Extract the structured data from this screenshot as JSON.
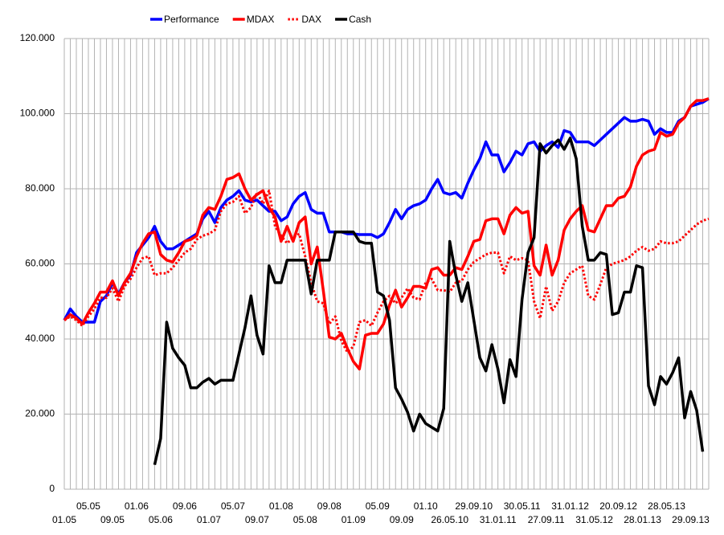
{
  "chart_data": {
    "type": "line",
    "categories": [
      "01.05",
      null,
      null,
      null,
      "05.05",
      null,
      null,
      null,
      "09.05",
      null,
      null,
      null,
      "01.06",
      null,
      null,
      null,
      "05.06",
      null,
      null,
      null,
      "09.06",
      null,
      null,
      null,
      "01.07",
      null,
      null,
      null,
      "05.07",
      null,
      null,
      null,
      "09.07",
      null,
      null,
      null,
      "01.08",
      null,
      null,
      null,
      "05.08",
      null,
      null,
      null,
      "09.08",
      null,
      null,
      null,
      "01.09",
      null,
      null,
      null,
      "05.09",
      null,
      null,
      null,
      "09.09",
      null,
      null,
      null,
      "01.10",
      null,
      null,
      null,
      "26.05.10",
      null,
      null,
      null,
      "29.09.10",
      null,
      null,
      null,
      "31.01.11",
      null,
      null,
      null,
      "30.05.11",
      null,
      null,
      null,
      "27.09.11",
      null,
      null,
      null,
      "31.01.12",
      null,
      null,
      null,
      "31.05.12",
      null,
      null,
      null,
      "20.09.12",
      null,
      null,
      null,
      "28.01.13",
      null,
      null,
      null,
      "28.05.13",
      null,
      null,
      null,
      "29.09.13",
      null,
      null,
      null
    ],
    "series": [
      {
        "name": "Performance",
        "color": "#0000ff",
        "dash": false,
        "values": [
          45000,
          48000,
          46000,
          44500,
          44500,
          44500,
          50000,
          51500,
          55000,
          52000,
          55000,
          57000,
          63000,
          65000,
          67000,
          70000,
          66000,
          64000,
          64000,
          65000,
          66000,
          67000,
          68000,
          72000,
          74000,
          71000,
          75000,
          77000,
          78000,
          79500,
          77000,
          76500,
          77000,
          75500,
          74000,
          74000,
          71500,
          72500,
          76000,
          78000,
          79000,
          74500,
          73500,
          73500,
          68500,
          68500,
          68500,
          68000,
          68000,
          67800,
          67800,
          67800,
          67000,
          68000,
          71000,
          74500,
          72000,
          74500,
          75500,
          76000,
          77000,
          80000,
          82500,
          79000,
          78500,
          79000,
          77500,
          81500,
          85000,
          88000,
          92500,
          89000,
          89000,
          84500,
          87000,
          90000,
          89000,
          92000,
          92500,
          90000,
          91500,
          92500,
          91000,
          95500,
          95000,
          92500,
          92500,
          92500,
          91500,
          93000,
          94500,
          96000,
          97500,
          99000,
          98000,
          98000,
          98500,
          98000,
          94500,
          96000,
          95000,
          95000,
          98000,
          99000,
          102000,
          102500,
          103000,
          104000
        ]
      },
      {
        "name": "MDAX",
        "color": "#ff0000",
        "dash": false,
        "values": [
          45000,
          46500,
          45500,
          44000,
          47000,
          49500,
          52500,
          52500,
          55500,
          51500,
          55000,
          57500,
          62000,
          65500,
          68000,
          68500,
          62500,
          61000,
          60500,
          63000,
          66000,
          66500,
          67500,
          73000,
          75000,
          74500,
          78000,
          82500,
          83000,
          84000,
          80000,
          77000,
          78500,
          79500,
          75000,
          72500,
          66000,
          70000,
          66000,
          71000,
          72500,
          60000,
          64500,
          53000,
          40500,
          40000,
          41500,
          37500,
          34000,
          32000,
          41000,
          41500,
          41500,
          44000,
          49000,
          53000,
          48500,
          51000,
          54000,
          54000,
          53500,
          58500,
          59000,
          57000,
          57000,
          59000,
          58500,
          62000,
          66000,
          66500,
          71500,
          72000,
          72000,
          68000,
          73000,
          75000,
          73500,
          74000,
          59500,
          57000,
          65000,
          57000,
          61000,
          69000,
          72000,
          74000,
          75500,
          69000,
          68500,
          72000,
          75500,
          75500,
          77500,
          78000,
          80500,
          86000,
          89000,
          90000,
          90500,
          95000,
          94000,
          94500,
          97500,
          99000,
          102000,
          103500,
          103500,
          104000
        ]
      },
      {
        "name": "DAX",
        "color": "#ff0000",
        "dash": true,
        "values": [
          45000,
          46000,
          45000,
          43500,
          46000,
          48000,
          51000,
          51000,
          53500,
          50000,
          54000,
          56000,
          59000,
          61500,
          62000,
          57000,
          57500,
          57500,
          59000,
          61000,
          63000,
          64000,
          66500,
          67500,
          68000,
          69000,
          74000,
          76000,
          76500,
          78000,
          73500,
          75000,
          79000,
          76000,
          79500,
          70000,
          67500,
          65500,
          67000,
          68000,
          62000,
          55000,
          50000,
          49500,
          44000,
          46000,
          39500,
          36500,
          38000,
          44500,
          45000,
          43500,
          47000,
          50000,
          51500,
          49500,
          51000,
          53500,
          51000,
          50500,
          55000,
          56000,
          53000,
          53000,
          52500,
          55000,
          55500,
          58500,
          60500,
          61500,
          62500,
          63000,
          63000,
          57500,
          62000,
          61000,
          61500,
          61000,
          50000,
          45500,
          54000,
          47500,
          50000,
          55000,
          57500,
          58500,
          59500,
          51500,
          50500,
          54500,
          59000,
          60000,
          60500,
          61000,
          62000,
          63500,
          64500,
          63500,
          64000,
          66000,
          65500,
          65500,
          66000,
          67500,
          69000,
          70500,
          71500,
          72000
        ]
      },
      {
        "name": "Cash",
        "color": "#000000",
        "dash": false,
        "values": [
          null,
          null,
          null,
          null,
          null,
          null,
          null,
          null,
          null,
          null,
          null,
          null,
          null,
          null,
          null,
          6500,
          13500,
          44500,
          37500,
          35000,
          33000,
          27000,
          27000,
          28500,
          29500,
          28000,
          29000,
          29000,
          29000,
          36000,
          43000,
          51500,
          41000,
          36000,
          59500,
          55000,
          55000,
          61000,
          61000,
          61000,
          61000,
          52000,
          61000,
          61000,
          61000,
          68500,
          68500,
          68500,
          68500,
          66000,
          65500,
          65500,
          52500,
          51500,
          45000,
          27000,
          24000,
          20500,
          15500,
          20000,
          17500,
          16500,
          15500,
          21500,
          66000,
          57000,
          50000,
          55000,
          45000,
          35000,
          31500,
          38500,
          32000,
          23000,
          34500,
          30000,
          50500,
          63000,
          67000,
          92000,
          89500,
          91500,
          93000,
          90500,
          93500,
          88000,
          70000,
          61000,
          61000,
          63000,
          62500,
          46500,
          47000,
          52500,
          52500,
          59500,
          59000,
          27500,
          22500,
          30000,
          28000,
          31000,
          35000,
          19000,
          26000,
          21000,
          10000,
          null
        ]
      }
    ],
    "ylim": [
      0,
      120000
    ],
    "yticks": [
      0,
      {
        "value": 20000,
        "label": "20.000"
      },
      {
        "value": 40000,
        "label": "40.000"
      },
      {
        "value": 60000,
        "label": "60.000"
      },
      {
        "value": 80000,
        "label": "80.000"
      },
      {
        "value": 100000,
        "label": "100.000"
      },
      {
        "value": 120000,
        "label": "120.000"
      }
    ],
    "grid": true,
    "legend": "top"
  }
}
